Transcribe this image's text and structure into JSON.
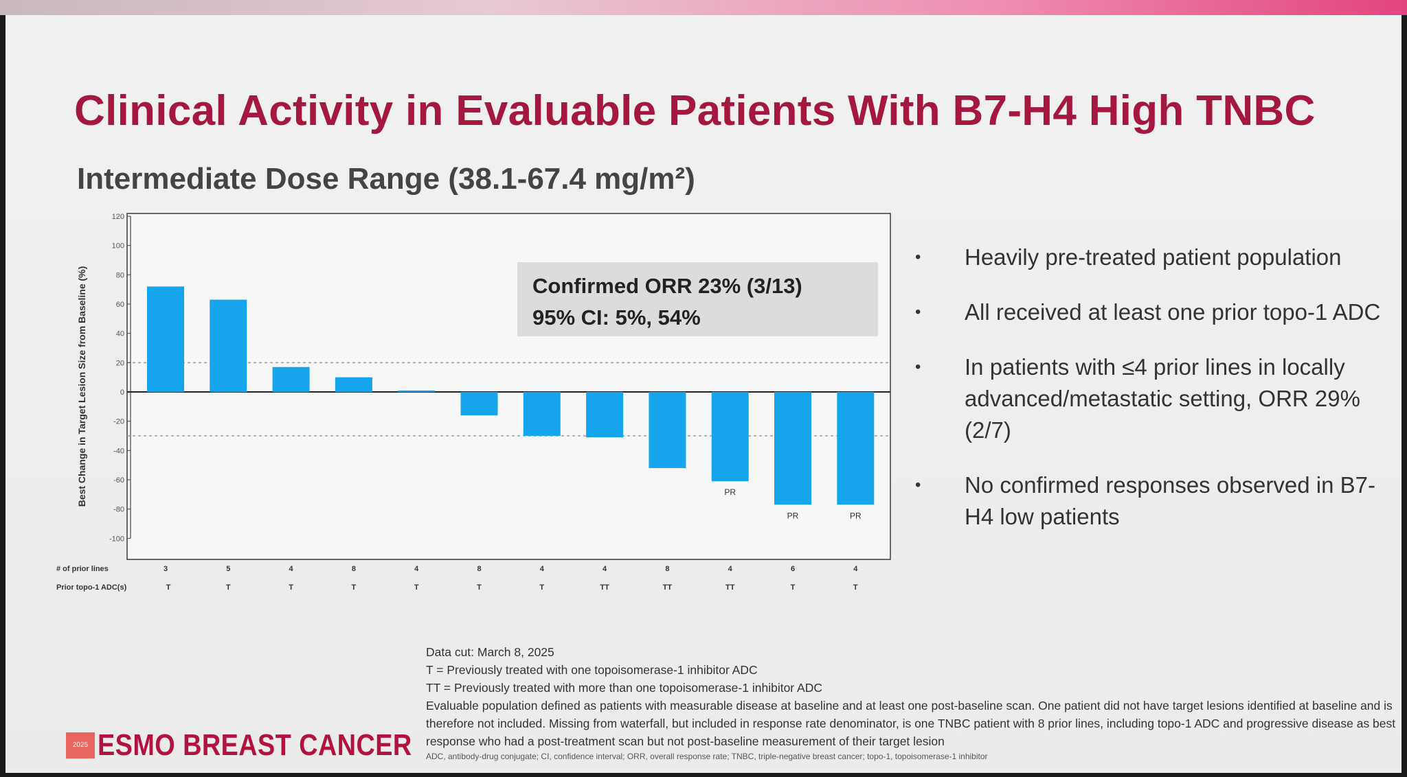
{
  "slide": {
    "title": "Clinical Activity in Evaluable Patients With B7-H4 High TNBC",
    "subtitle": "Intermediate Dose Range (38.1-67.4 mg/m²)"
  },
  "chart_data": {
    "type": "bar",
    "ylabel": "Best Change in Target Lesion Size from Baseline (%)",
    "ylim": [
      -120,
      120
    ],
    "yticks": [
      120,
      100,
      80,
      60,
      40,
      20,
      0,
      -20,
      -40,
      -60,
      -80,
      -100
    ],
    "reference_lines": [
      20,
      -30
    ],
    "grid": false,
    "values": [
      72,
      63,
      17,
      10,
      1,
      -16,
      -30,
      -31,
      -52,
      -61,
      -77,
      -77
    ],
    "bar_labels": [
      "",
      "",
      "",
      "",
      "",
      "",
      "",
      "",
      "",
      "PR",
      "PR",
      "PR"
    ],
    "color": "#16a4ec",
    "rows": [
      {
        "label": "# of prior lines",
        "values": [
          "3",
          "5",
          "4",
          "8",
          "4",
          "8",
          "4",
          "4",
          "8",
          "4",
          "6",
          "4"
        ]
      },
      {
        "label": "Prior topo-1 ADC(s)",
        "values": [
          "T",
          "T",
          "T",
          "T",
          "T",
          "T",
          "T",
          "TT",
          "TT",
          "TT",
          "T",
          "T"
        ]
      }
    ]
  },
  "orr_box": {
    "line1": "Confirmed ORR 23% (3/13)",
    "line2": "95% CI: 5%, 54%"
  },
  "bullets": [
    "Heavily pre-treated patient population",
    "All received at least one prior topo-1 ADC",
    "In patients with ≤4 prior lines in locally advanced/metastatic setting, ORR 29% (2/7)",
    "No confirmed responses observed in B7-H4 low patients"
  ],
  "notes": {
    "data_cut": "Data cut: March 8, 2025",
    "t_def": "T = Previously treated with one topoisomerase-1 inhibitor ADC",
    "tt_def": "TT = Previously treated with more than one topoisomerase-1 inhibitor ADC",
    "population": "Evaluable population defined as patients with measurable disease at baseline and at least one post-baseline scan. One patient did not have target lesions identified at baseline and is therefore not included. Missing from waterfall, but included in response rate denominator, is one TNBC patient with 8 prior lines, including topo-1 ADC and progressive disease as best response who had a post-treatment scan but not post-baseline measurement of their target lesion",
    "abbreviations": "ADC, antibody-drug conjugate; CI, confidence interval; ORR, overall response rate; TNBC, triple-negative breast cancer; topo-1, topoisomerase-1 inhibitor"
  },
  "logo": {
    "mark": "2025",
    "text": "ESMO BREAST CANCER"
  }
}
